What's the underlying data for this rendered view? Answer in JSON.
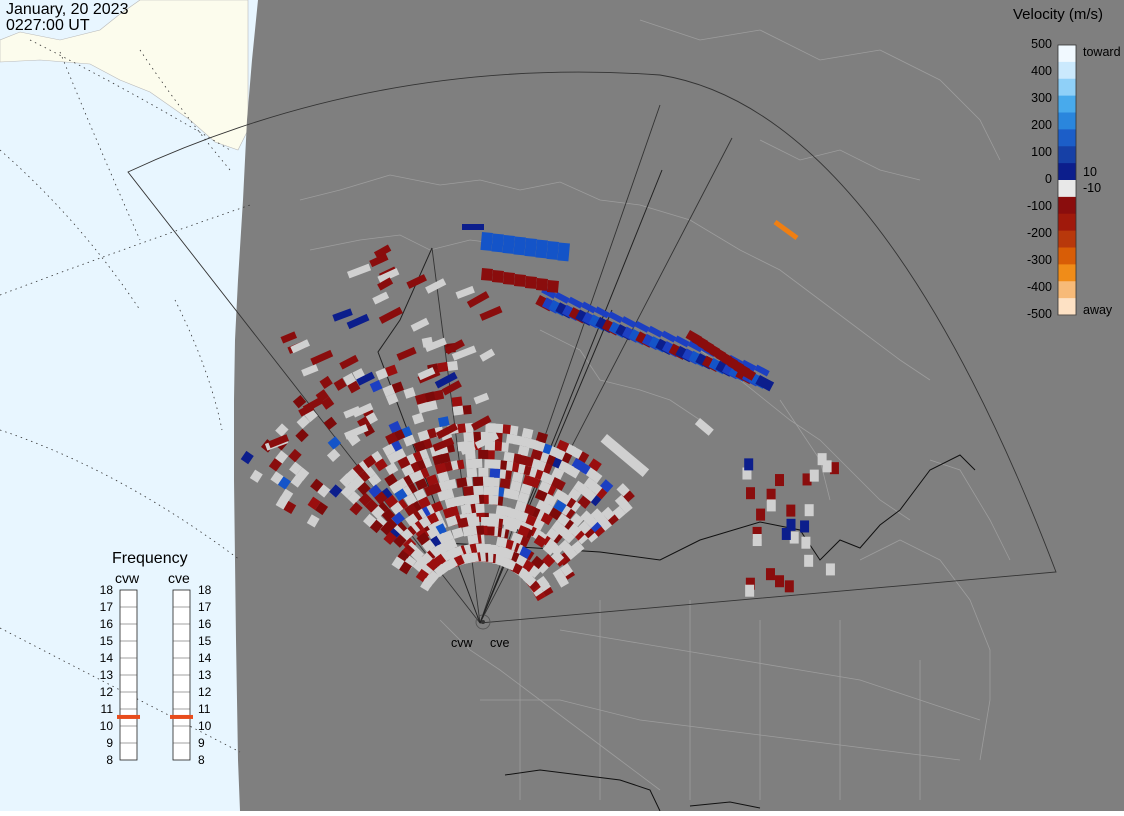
{
  "timestamp": {
    "date": "January, 20 2023",
    "time": "0227:00 UT"
  },
  "colorbar": {
    "title": "Velocity (m/s)",
    "ticks": [
      "500",
      "400",
      "300",
      "200",
      "100",
      "0",
      "-100",
      "-200",
      "-300",
      "-400",
      "-500"
    ],
    "label_toward": "toward",
    "label_away": "away",
    "near_zero_pos": "10",
    "near_zero_neg": "-10",
    "colors": [
      "#f1f9ff",
      "#cbe9fd",
      "#8fd0f8",
      "#48aaec",
      "#2a86dd",
      "#1c5ec8",
      "#1640a6",
      "#0c1e8c",
      "#e8e8e8",
      "#8a0d0d",
      "#a0190b",
      "#b8380b",
      "#d85d06",
      "#f08c18",
      "#f7ba78",
      "#fde1c4"
    ]
  },
  "frequency": {
    "title": "Frequency",
    "radar1": "cvw",
    "radar2": "cve",
    "labels": [
      "18",
      "17",
      "16",
      "15",
      "14",
      "13",
      "12",
      "11",
      "10",
      "9",
      "8"
    ],
    "cvw_mhz": 11,
    "cve_mhz": 11,
    "marker_color": "#e84c1c"
  },
  "radars": {
    "west": "cvw",
    "east": "cve"
  },
  "map_colors": {
    "land": "#7f7f7f",
    "ocean": "#e8f6ff",
    "ice": "#fcfced",
    "coast": "#9d9d9d",
    "gray_scatter": "#d0d0d0"
  }
}
